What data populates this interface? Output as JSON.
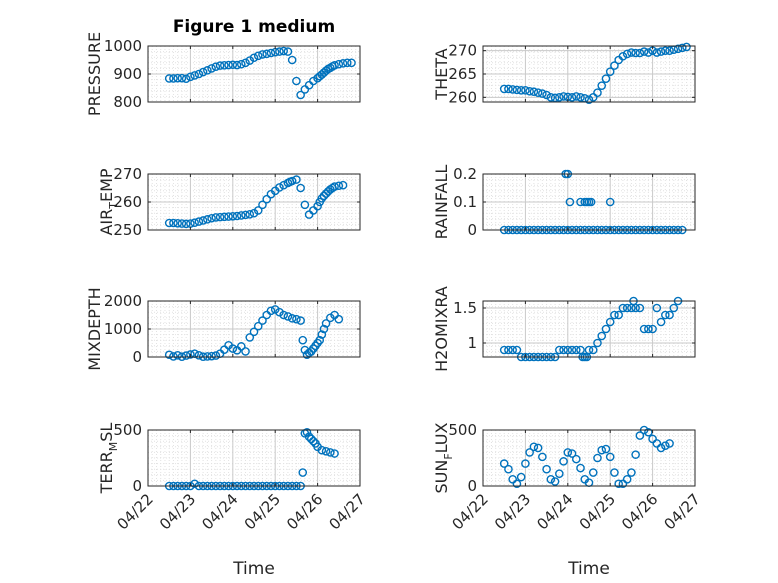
{
  "figure": {
    "title": "Figure 1 medium"
  },
  "style": {
    "marker_color": "#0072bd",
    "axis_color": "#262626",
    "grid_color": "#c9c9c9"
  },
  "chart_data": [
    {
      "type": "scatter",
      "title": "Figure 1 medium",
      "ylabel": "PRESSURE",
      "ylim": [
        800,
        1000
      ],
      "yticks": [
        "800",
        "900",
        "1000"
      ],
      "xticks": [
        "04/22",
        "04/23",
        "04/24",
        "04/25",
        "04/26",
        "04/27"
      ],
      "xlim": [
        "04/22",
        "04/27"
      ],
      "grid": true,
      "x": [
        0.5,
        0.6,
        0.7,
        0.8,
        0.9,
        1.0,
        1.1,
        1.2,
        1.3,
        1.4,
        1.5,
        1.6,
        1.7,
        1.8,
        1.9,
        2.0,
        2.1,
        2.2,
        2.3,
        2.4,
        2.5,
        2.6,
        2.7,
        2.8,
        2.9,
        3.0,
        3.1,
        3.2,
        3.3,
        3.4,
        3.5,
        3.6,
        3.7,
        3.8,
        3.9,
        4.0,
        4.05,
        4.1,
        4.15,
        4.2,
        4.25,
        4.3,
        4.35,
        4.4,
        4.5,
        4.6,
        4.7,
        4.8
      ],
      "y": [
        884,
        884,
        885,
        885,
        883,
        890,
        895,
        900,
        907,
        913,
        920,
        926,
        930,
        931,
        932,
        933,
        932,
        935,
        940,
        948,
        958,
        965,
        970,
        972,
        975,
        978,
        980,
        982,
        980,
        950,
        875,
        825,
        845,
        860,
        875,
        885,
        892,
        898,
        905,
        912,
        918,
        922,
        927,
        931,
        935,
        938,
        940,
        940
      ]
    },
    {
      "type": "scatter",
      "ylabel": "THETA",
      "ylim": [
        259,
        271
      ],
      "yticks": [
        "260",
        "265",
        "270"
      ],
      "xticks": [
        "04/22",
        "04/23",
        "04/24",
        "04/25",
        "04/26",
        "04/27"
      ],
      "grid": true,
      "x": [
        0.5,
        0.6,
        0.7,
        0.8,
        0.9,
        1.0,
        1.1,
        1.2,
        1.3,
        1.4,
        1.5,
        1.6,
        1.7,
        1.8,
        1.9,
        2.0,
        2.1,
        2.2,
        2.3,
        2.4,
        2.5,
        2.6,
        2.7,
        2.8,
        2.9,
        3.0,
        3.1,
        3.2,
        3.3,
        3.4,
        3.5,
        3.6,
        3.7,
        3.8,
        3.9,
        4.0,
        4.1,
        4.2,
        4.3,
        4.4,
        4.5,
        4.6,
        4.7,
        4.8
      ],
      "y": [
        261.8,
        261.8,
        261.7,
        261.6,
        261.5,
        261.5,
        261.3,
        261.2,
        261,
        260.8,
        260.5,
        260,
        259.9,
        260,
        260.2,
        260.1,
        260,
        260.2,
        260,
        259.8,
        259.5,
        260,
        261,
        262.5,
        264,
        265.5,
        266.8,
        268,
        268.8,
        269.3,
        269.6,
        269.5,
        269.5,
        269.8,
        269.6,
        270,
        269.6,
        269.8,
        270,
        270,
        270.2,
        270.4,
        270.6,
        270.8
      ]
    },
    {
      "type": "scatter",
      "ylabel": "AIR",
      "ylabel_sub": "T",
      "ylabel_rest": "EMP",
      "ylim": [
        250,
        270
      ],
      "yticks": [
        "250",
        "260",
        "270"
      ],
      "xticks": [
        "04/22",
        "04/23",
        "04/24",
        "04/25",
        "04/26",
        "04/27"
      ],
      "grid": true,
      "x": [
        0.5,
        0.6,
        0.7,
        0.8,
        0.9,
        1.0,
        1.1,
        1.2,
        1.3,
        1.4,
        1.5,
        1.6,
        1.7,
        1.8,
        1.9,
        2.0,
        2.1,
        2.2,
        2.3,
        2.4,
        2.5,
        2.6,
        2.7,
        2.8,
        2.9,
        3.0,
        3.1,
        3.2,
        3.3,
        3.35,
        3.4,
        3.5,
        3.6,
        3.7,
        3.8,
        3.9,
        4.0,
        4.05,
        4.1,
        4.15,
        4.2,
        4.25,
        4.3,
        4.35,
        4.4,
        4.5,
        4.6
      ],
      "y": [
        252.5,
        252.5,
        252.4,
        252.3,
        252.2,
        252.3,
        252.6,
        253,
        253.4,
        253.8,
        254.2,
        254.5,
        254.6,
        254.7,
        254.8,
        254.9,
        255,
        255.2,
        255.4,
        255.6,
        256,
        257,
        259,
        261,
        262.8,
        264,
        265.2,
        266,
        266.8,
        267.2,
        267.5,
        268,
        265,
        259,
        255.5,
        257,
        258.5,
        260,
        261.3,
        262.2,
        263,
        263.8,
        264.5,
        265,
        265.5,
        265.8,
        266
      ]
    },
    {
      "type": "scatter",
      "ylabel": "RAINFALL",
      "ylim": [
        0,
        0.2
      ],
      "yticks": [
        "0",
        "0.1",
        "0.2"
      ],
      "xticks": [
        "04/22",
        "04/23",
        "04/24",
        "04/25",
        "04/26",
        "04/27"
      ],
      "grid": true,
      "x": [
        0.5,
        0.6,
        0.7,
        0.8,
        0.9,
        1.0,
        1.1,
        1.2,
        1.3,
        1.4,
        1.5,
        1.6,
        1.7,
        1.8,
        1.9,
        2.0,
        2.1,
        2.2,
        2.3,
        2.4,
        2.5,
        2.6,
        2.7,
        2.8,
        2.9,
        3.0,
        3.1,
        3.2,
        3.3,
        3.4,
        3.5,
        3.6,
        3.7,
        3.8,
        3.9,
        4.0,
        4.1,
        4.2,
        4.3,
        4.4,
        4.5,
        4.6,
        4.7,
        1.95,
        2.0,
        2.05,
        2.3,
        2.4,
        2.45,
        2.5,
        2.55,
        3.0
      ],
      "y": [
        0,
        0,
        0,
        0,
        0,
        0,
        0,
        0,
        0,
        0,
        0,
        0,
        0,
        0,
        0,
        0,
        0,
        0,
        0,
        0,
        0,
        0,
        0,
        0,
        0,
        0,
        0,
        0,
        0,
        0,
        0,
        0,
        0,
        0,
        0,
        0,
        0,
        0,
        0,
        0,
        0,
        0,
        0,
        0.2,
        0.2,
        0.1,
        0.1,
        0.1,
        0.1,
        0.1,
        0.1,
        0.1
      ]
    },
    {
      "type": "scatter",
      "ylabel": "MIXDEPTH",
      "ylim": [
        0,
        2000
      ],
      "yticks": [
        "0",
        "1000",
        "2000"
      ],
      "xticks": [
        "04/22",
        "04/23",
        "04/24",
        "04/25",
        "04/26",
        "04/27"
      ],
      "grid": true,
      "x": [
        0.5,
        0.6,
        0.7,
        0.8,
        0.9,
        1.0,
        1.1,
        1.2,
        1.3,
        1.4,
        1.5,
        1.6,
        1.7,
        1.8,
        1.9,
        2.0,
        2.1,
        2.2,
        2.3,
        2.4,
        2.5,
        2.6,
        2.7,
        2.8,
        2.9,
        3.0,
        3.1,
        3.2,
        3.3,
        3.4,
        3.5,
        3.6,
        3.65,
        3.7,
        3.75,
        3.8,
        3.85,
        3.9,
        3.95,
        4.0,
        4.05,
        4.1,
        4.15,
        4.2,
        4.3,
        4.4,
        4.5
      ],
      "y": [
        80,
        20,
        60,
        10,
        50,
        90,
        120,
        60,
        10,
        20,
        30,
        50,
        120,
        260,
        420,
        300,
        240,
        380,
        200,
        700,
        900,
        1100,
        1300,
        1500,
        1650,
        1700,
        1600,
        1500,
        1450,
        1380,
        1350,
        1300,
        600,
        250,
        80,
        150,
        200,
        300,
        400,
        500,
        600,
        800,
        1000,
        1200,
        1400,
        1500,
        1350
      ]
    },
    {
      "type": "scatter",
      "ylabel": "H2OMIXRA",
      "ylim": [
        0.8,
        1.6
      ],
      "yticks": [
        "1",
        "1.5"
      ],
      "xticks": [
        "04/22",
        "04/23",
        "04/24",
        "04/25",
        "04/26",
        "04/27"
      ],
      "grid": true,
      "x": [
        0.5,
        0.6,
        0.7,
        0.8,
        0.9,
        1.0,
        1.1,
        1.2,
        1.3,
        1.4,
        1.5,
        1.6,
        1.7,
        1.8,
        1.9,
        2.0,
        2.1,
        2.2,
        2.3,
        2.35,
        2.4,
        2.45,
        2.5,
        2.6,
        2.7,
        2.8,
        2.9,
        3.0,
        3.1,
        3.2,
        3.3,
        3.4,
        3.5,
        3.55,
        3.6,
        3.7,
        3.8,
        3.9,
        4.0,
        4.1,
        4.2,
        4.3,
        4.4,
        4.5,
        4.6
      ],
      "y": [
        0.9,
        0.9,
        0.9,
        0.9,
        0.8,
        0.8,
        0.8,
        0.8,
        0.8,
        0.8,
        0.8,
        0.8,
        0.8,
        0.9,
        0.9,
        0.9,
        0.9,
        0.9,
        0.9,
        0.8,
        0.8,
        0.8,
        0.9,
        0.9,
        1.0,
        1.1,
        1.2,
        1.3,
        1.4,
        1.4,
        1.5,
        1.5,
        1.5,
        1.6,
        1.5,
        1.5,
        1.2,
        1.2,
        1.2,
        1.5,
        1.3,
        1.4,
        1.4,
        1.5,
        1.6
      ]
    },
    {
      "type": "scatter",
      "ylabel": "TERR",
      "ylabel_sub": "M",
      "ylabel_rest": "SL",
      "ylim": [
        0,
        500
      ],
      "yticks": [
        "0",
        "500"
      ],
      "xticks": [
        "04/22",
        "04/23",
        "04/24",
        "04/25",
        "04/26",
        "04/27"
      ],
      "grid": true,
      "x": [
        0.5,
        0.6,
        0.7,
        0.8,
        0.9,
        1.0,
        1.1,
        1.2,
        1.3,
        1.4,
        1.5,
        1.6,
        1.7,
        1.8,
        1.9,
        2.0,
        2.1,
        2.2,
        2.3,
        2.4,
        2.5,
        2.6,
        2.7,
        2.8,
        2.9,
        3.0,
        3.1,
        3.2,
        3.3,
        3.4,
        3.5,
        3.6,
        3.65,
        3.7,
        3.75,
        3.8,
        3.85,
        3.9,
        3.95,
        4.0,
        4.1,
        4.2,
        4.3,
        4.4
      ],
      "y": [
        0,
        0,
        0,
        0,
        0,
        0,
        20,
        0,
        0,
        0,
        0,
        0,
        0,
        0,
        0,
        0,
        0,
        0,
        0,
        0,
        0,
        0,
        0,
        0,
        0,
        0,
        0,
        0,
        0,
        0,
        0,
        0,
        120,
        470,
        480,
        440,
        420,
        400,
        380,
        350,
        320,
        310,
        300,
        290
      ]
    },
    {
      "type": "scatter",
      "ylabel": "SUN",
      "ylabel_sub": "F",
      "ylabel_rest": "LUX",
      "ylim": [
        0,
        500
      ],
      "yticks": [
        "0",
        "500"
      ],
      "xticks": [
        "04/22",
        "04/23",
        "04/24",
        "04/25",
        "04/26",
        "04/27"
      ],
      "grid": true,
      "x": [
        0.5,
        0.6,
        0.7,
        0.8,
        0.9,
        1.0,
        1.1,
        1.2,
        1.3,
        1.4,
        1.5,
        1.6,
        1.7,
        1.8,
        1.9,
        2.0,
        2.1,
        2.2,
        2.3,
        2.4,
        2.5,
        2.6,
        2.7,
        2.8,
        2.9,
        3.0,
        3.1,
        3.2,
        3.3,
        3.4,
        3.5,
        3.6,
        3.7,
        3.8,
        3.9,
        4.0,
        4.1,
        4.2,
        4.3,
        4.4
      ],
      "y": [
        200,
        150,
        60,
        20,
        80,
        200,
        300,
        350,
        340,
        260,
        150,
        60,
        40,
        110,
        220,
        300,
        290,
        240,
        160,
        60,
        30,
        120,
        250,
        320,
        330,
        260,
        120,
        20,
        20,
        60,
        120,
        280,
        450,
        500,
        480,
        420,
        380,
        340,
        360,
        380
      ]
    }
  ]
}
